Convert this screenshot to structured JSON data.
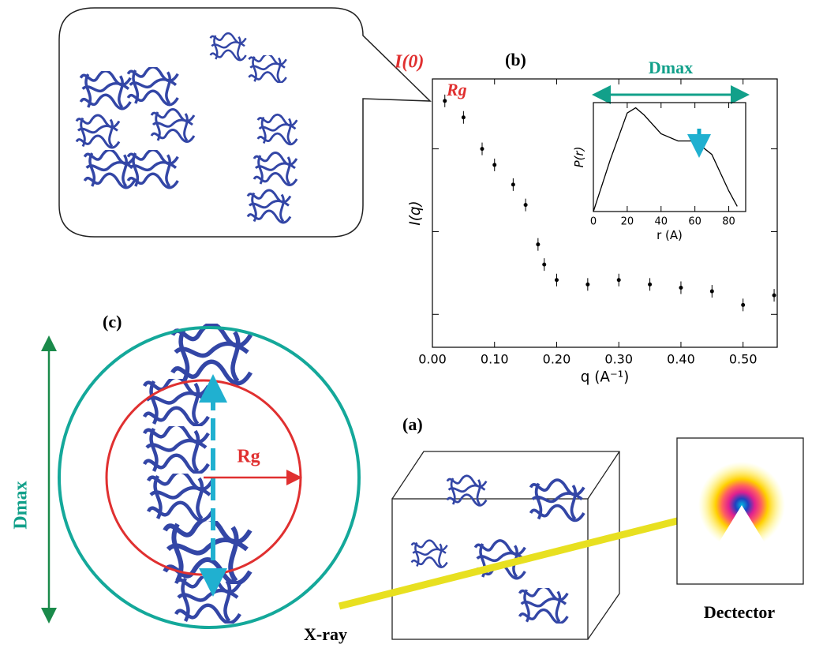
{
  "labels": {
    "panel_a": "(a)",
    "panel_b": "(b)",
    "panel_c": "(c)",
    "i0": "I(0)",
    "rg_chart": "Rg",
    "dmax_chart": "Dmax",
    "rg_circle": "Rg",
    "dmax_side": "Dmax",
    "xray": "X-ray",
    "detector": "Dectector"
  },
  "chart_data": [
    {
      "type": "scatter",
      "x_label": "q (A⁻¹)",
      "y_label": "I(q)",
      "log_y": true,
      "color": "#000000",
      "x": [
        0.02,
        0.05,
        0.08,
        0.1,
        0.13,
        0.15,
        0.17,
        0.18,
        0.2,
        0.25,
        0.3,
        0.35,
        0.4,
        0.45,
        0.5,
        0.55
      ],
      "values": [
        0.38,
        0.24,
        0.1,
        0.064,
        0.037,
        0.021,
        0.007,
        0.004,
        0.0026,
        0.0023,
        0.0026,
        0.0023,
        0.0021,
        0.0019,
        0.0013,
        0.0017
      ],
      "xlim": [
        0,
        0.555
      ],
      "ylim": [
        0.0004,
        0.7
      ],
      "xticks": [
        {
          "value": 0,
          "label": "0.00"
        },
        {
          "value": 0.1,
          "label": "0.10"
        },
        {
          "value": 0.2,
          "label": "0.20"
        },
        {
          "value": 0.3,
          "label": "0.30"
        },
        {
          "value": 0.4,
          "label": "0.40"
        },
        {
          "value": 0.5,
          "label": "0.50"
        }
      ],
      "yticks": [
        0.001,
        0.01,
        0.1
      ]
    },
    {
      "type": "line",
      "x_label": "r (A)",
      "y_label": "P(r)",
      "color": "#000000",
      "x": [
        0,
        10,
        20,
        25,
        30,
        40,
        50,
        60,
        70,
        80,
        85
      ],
      "values": [
        0,
        0.5,
        0.95,
        1.0,
        0.93,
        0.75,
        0.68,
        0.68,
        0.55,
        0.2,
        0.05
      ],
      "xlim": [
        0,
        90
      ],
      "ylim": [
        0,
        1.05
      ],
      "xticks": [
        0,
        20,
        40,
        60,
        80
      ]
    }
  ]
}
